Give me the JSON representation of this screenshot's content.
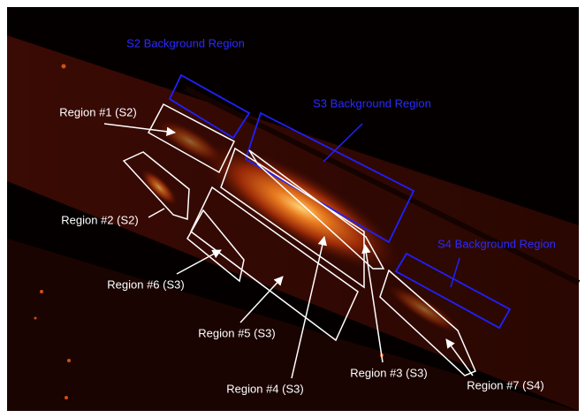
{
  "labels": {
    "s2_background": "S2 Background Region",
    "s3_background": "S3 Background Region",
    "s4_background": "S4 Background Region",
    "region1": "Region #1 (S2)",
    "region2": "Region #2 (S2)",
    "region3": "Region #3 (S3)",
    "region4": "Region #4 (S3)",
    "region5": "Region #5 (S3)",
    "region6": "Region #6 (S3)",
    "region7": "Region #7 (S4)"
  }
}
